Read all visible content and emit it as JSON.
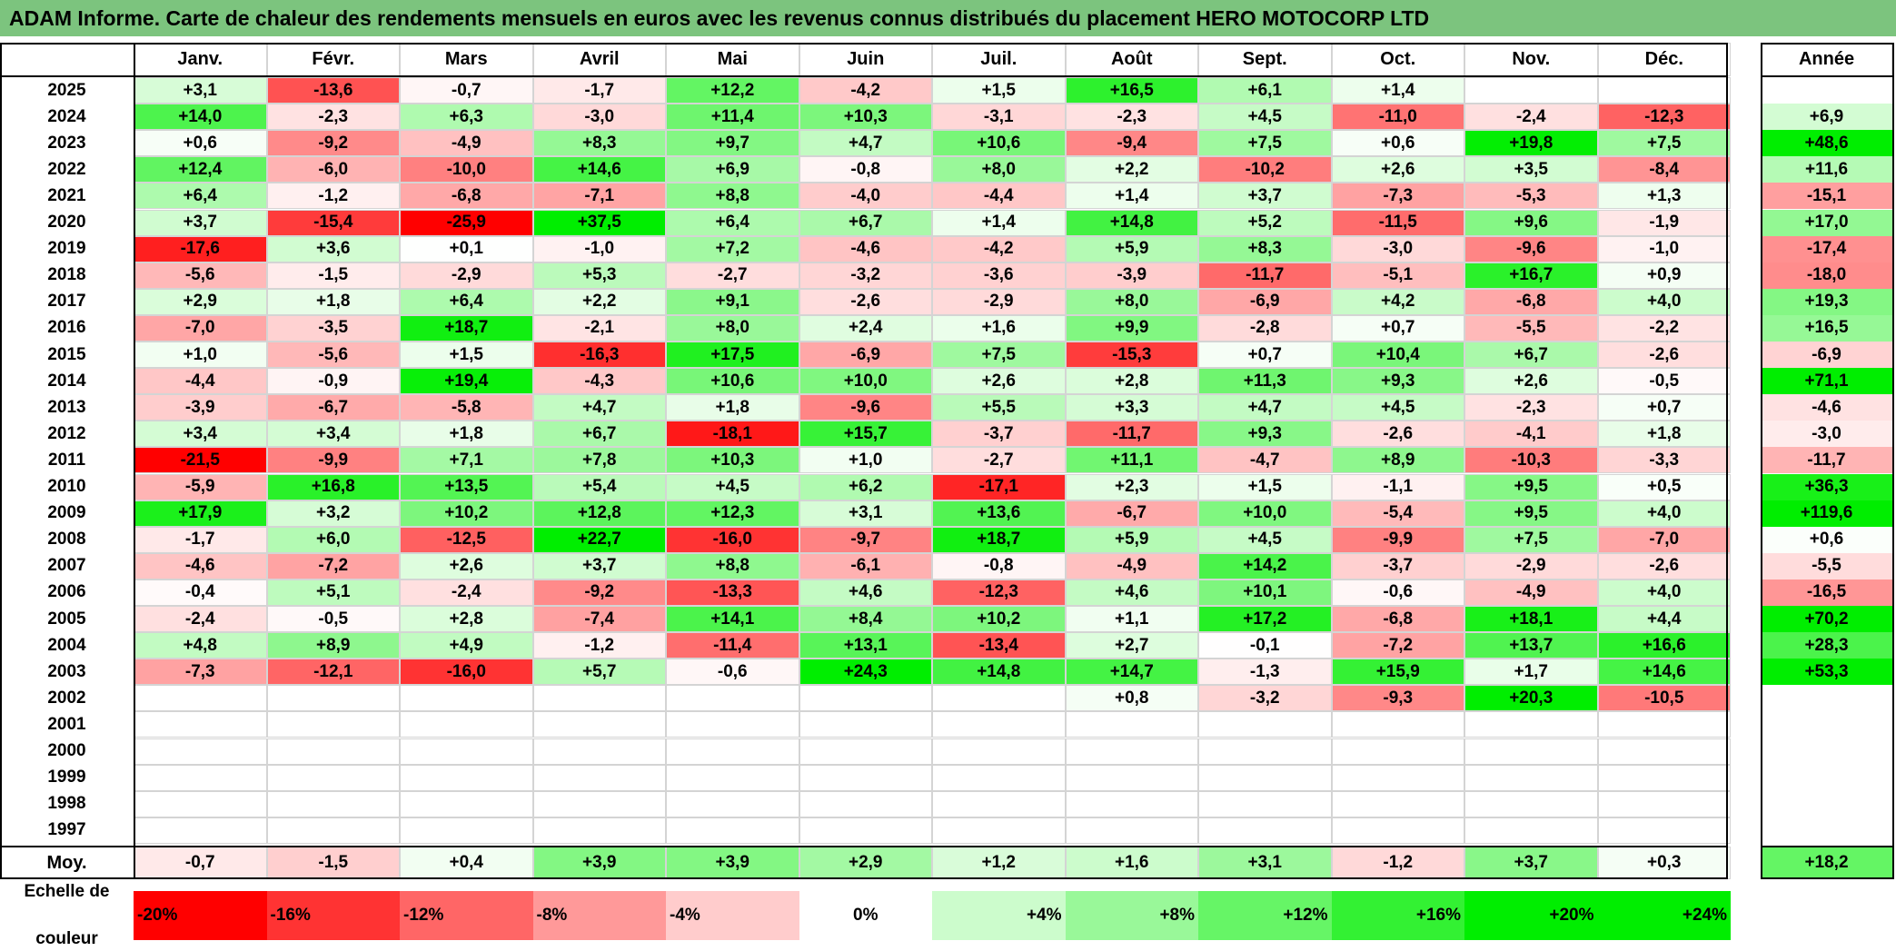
{
  "title": "ADAM Informe. Carte de chaleur des rendements mensuels en euros avec les revenus connus distribués du placement HERO MOTOCORP LTD",
  "colors": {
    "title_bg": "#7cc47e",
    "negative_max": "#ff0000",
    "positive_max": "#00ee00",
    "neutral": "#ffffff"
  },
  "chart_data": {
    "type": "heatmap",
    "title": "ADAM Informe. Carte de chaleur des rendements mensuels en euros avec les revenus connus distribués du placement HERO MOTOCORP LTD",
    "months": [
      "Janv.",
      "Févr.",
      "Mars",
      "Avril",
      "Mai",
      "Juin",
      "Juil.",
      "Août",
      "Sept.",
      "Oct.",
      "Nov.",
      "Déc."
    ],
    "year_header": "Année",
    "rows": [
      {
        "year": "2025",
        "values": [
          "+3,1",
          "-13,6",
          "-0,7",
          "-1,7",
          "+12,2",
          "-4,2",
          "+1,5",
          "+16,5",
          "+6,1",
          "+1,4",
          "",
          ""
        ],
        "annual": ""
      },
      {
        "year": "2024",
        "values": [
          "+14,0",
          "-2,3",
          "+6,3",
          "-3,0",
          "+11,4",
          "+10,3",
          "-3,1",
          "-2,3",
          "+4,5",
          "-11,0",
          "-2,4",
          "-12,3"
        ],
        "annual": "+6,9"
      },
      {
        "year": "2023",
        "values": [
          "+0,6",
          "-9,2",
          "-4,9",
          "+8,3",
          "+9,7",
          "+4,7",
          "+10,6",
          "-9,4",
          "+7,5",
          "+0,6",
          "+19,8",
          "+7,5"
        ],
        "annual": "+48,6"
      },
      {
        "year": "2022",
        "values": [
          "+12,4",
          "-6,0",
          "-10,0",
          "+14,6",
          "+6,9",
          "-0,8",
          "+8,0",
          "+2,2",
          "-10,2",
          "+2,6",
          "+3,5",
          "-8,4"
        ],
        "annual": "+11,6"
      },
      {
        "year": "2021",
        "values": [
          "+6,4",
          "-1,2",
          "-6,8",
          "-7,1",
          "+8,8",
          "-4,0",
          "-4,4",
          "+1,4",
          "+3,7",
          "-7,3",
          "-5,3",
          "+1,3"
        ],
        "annual": "-15,1"
      },
      {
        "year": "2020",
        "values": [
          "+3,7",
          "-15,4",
          "-25,9",
          "+37,5",
          "+6,4",
          "+6,7",
          "+1,4",
          "+14,8",
          "+5,2",
          "-11,5",
          "+9,6",
          "-1,9"
        ],
        "annual": "+17,0"
      },
      {
        "year": "2019",
        "values": [
          "-17,6",
          "+3,6",
          "+0,1",
          "-1,0",
          "+7,2",
          "-4,6",
          "-4,2",
          "+5,9",
          "+8,3",
          "-3,0",
          "-9,6",
          "-1,0"
        ],
        "annual": "-17,4"
      },
      {
        "year": "2018",
        "values": [
          "-5,6",
          "-1,5",
          "-2,9",
          "+5,3",
          "-2,7",
          "-3,2",
          "-3,6",
          "-3,9",
          "-11,7",
          "-5,1",
          "+16,7",
          "+0,9"
        ],
        "annual": "-18,0"
      },
      {
        "year": "2017",
        "values": [
          "+2,9",
          "+1,8",
          "+6,4",
          "+2,2",
          "+9,1",
          "-2,6",
          "-2,9",
          "+8,0",
          "-6,9",
          "+4,2",
          "-6,8",
          "+4,0"
        ],
        "annual": "+19,3"
      },
      {
        "year": "2016",
        "values": [
          "-7,0",
          "-3,5",
          "+18,7",
          "-2,1",
          "+8,0",
          "+2,4",
          "+1,6",
          "+9,9",
          "-2,8",
          "+0,7",
          "-5,5",
          "-2,2"
        ],
        "annual": "+16,5"
      },
      {
        "year": "2015",
        "values": [
          "+1,0",
          "-5,6",
          "+1,5",
          "-16,3",
          "+17,5",
          "-6,9",
          "+7,5",
          "-15,3",
          "+0,7",
          "+10,4",
          "+6,7",
          "-2,6"
        ],
        "annual": "-6,9"
      },
      {
        "year": "2014",
        "values": [
          "-4,4",
          "-0,9",
          "+19,4",
          "-4,3",
          "+10,6",
          "+10,0",
          "+2,6",
          "+2,8",
          "+11,3",
          "+9,3",
          "+2,6",
          "-0,5"
        ],
        "annual": "+71,1"
      },
      {
        "year": "2013",
        "values": [
          "-3,9",
          "-6,7",
          "-5,8",
          "+4,7",
          "+1,8",
          "-9,6",
          "+5,5",
          "+3,3",
          "+4,7",
          "+4,5",
          "-2,3",
          "+0,7"
        ],
        "annual": "-4,6"
      },
      {
        "year": "2012",
        "values": [
          "+3,4",
          "+3,4",
          "+1,8",
          "+6,7",
          "-18,1",
          "+15,7",
          "-3,7",
          "-11,7",
          "+9,3",
          "-2,6",
          "-4,1",
          "+1,8"
        ],
        "annual": "-3,0"
      },
      {
        "year": "2011",
        "values": [
          "-21,5",
          "-9,9",
          "+7,1",
          "+7,8",
          "+10,3",
          "+1,0",
          "-2,7",
          "+11,1",
          "-4,7",
          "+8,9",
          "-10,3",
          "-3,3"
        ],
        "annual": "-11,7"
      },
      {
        "year": "2010",
        "values": [
          "-5,9",
          "+16,8",
          "+13,5",
          "+5,4",
          "+4,5",
          "+6,2",
          "-17,1",
          "+2,3",
          "+1,5",
          "-1,1",
          "+9,5",
          "+0,5"
        ],
        "annual": "+36,3"
      },
      {
        "year": "2009",
        "values": [
          "+17,9",
          "+3,2",
          "+10,2",
          "+12,8",
          "+12,3",
          "+3,1",
          "+13,6",
          "-6,7",
          "+10,0",
          "-5,4",
          "+9,5",
          "+4,0"
        ],
        "annual": "+119,6"
      },
      {
        "year": "2008",
        "values": [
          "-1,7",
          "+6,0",
          "-12,5",
          "+22,7",
          "-16,0",
          "-9,7",
          "+18,7",
          "+5,9",
          "+4,5",
          "-9,9",
          "+7,5",
          "-7,0"
        ],
        "annual": "+0,6"
      },
      {
        "year": "2007",
        "values": [
          "-4,6",
          "-7,2",
          "+2,6",
          "+3,7",
          "+8,8",
          "-6,1",
          "-0,8",
          "-4,9",
          "+14,2",
          "-3,7",
          "-2,9",
          "-2,6"
        ],
        "annual": "-5,5"
      },
      {
        "year": "2006",
        "values": [
          "-0,4",
          "+5,1",
          "-2,4",
          "-9,2",
          "-13,3",
          "+4,6",
          "-12,3",
          "+4,6",
          "+10,1",
          "-0,6",
          "-4,9",
          "+4,0"
        ],
        "annual": "-16,5"
      },
      {
        "year": "2005",
        "values": [
          "-2,4",
          "-0,5",
          "+2,8",
          "-7,4",
          "+14,1",
          "+8,4",
          "+10,2",
          "+1,1",
          "+17,2",
          "-6,8",
          "+18,1",
          "+4,4"
        ],
        "annual": "+70,2"
      },
      {
        "year": "2004",
        "values": [
          "+4,8",
          "+8,9",
          "+4,9",
          "-1,2",
          "-11,4",
          "+13,1",
          "-13,4",
          "+2,7",
          "-0,1",
          "-7,2",
          "+13,7",
          "+16,6"
        ],
        "annual": "+28,3"
      },
      {
        "year": "2003",
        "values": [
          "-7,3",
          "-12,1",
          "-16,0",
          "+5,7",
          "-0,6",
          "+24,3",
          "+14,8",
          "+14,7",
          "-1,3",
          "+15,9",
          "+1,7",
          "+14,6"
        ],
        "annual": "+53,3"
      },
      {
        "year": "2002",
        "values": [
          "",
          "",
          "",
          "",
          "",
          "",
          "",
          "+0,8",
          "-3,2",
          "-9,3",
          "+20,3",
          "-10,5"
        ],
        "annual": ""
      },
      {
        "year": "2001",
        "values": [
          "",
          "",
          "",
          "",
          "",
          "",
          "",
          "",
          "",
          "",
          "",
          ""
        ],
        "annual": ""
      },
      {
        "year": "2000",
        "values": [
          "",
          "",
          "",
          "",
          "",
          "",
          "",
          "",
          "",
          "",
          "",
          ""
        ],
        "annual": ""
      },
      {
        "year": "1999",
        "values": [
          "",
          "",
          "",
          "",
          "",
          "",
          "",
          "",
          "",
          "",
          "",
          ""
        ],
        "annual": ""
      },
      {
        "year": "1998",
        "values": [
          "",
          "",
          "",
          "",
          "",
          "",
          "",
          "",
          "",
          "",
          "",
          ""
        ],
        "annual": ""
      },
      {
        "year": "1997",
        "values": [
          "",
          "",
          "",
          "",
          "",
          "",
          "",
          "",
          "",
          "",
          "",
          ""
        ],
        "annual": ""
      }
    ],
    "average": {
      "label": "Moy.",
      "values": [
        "-0,7",
        "-1,5",
        "+0,4",
        "+3,9",
        "+3,9",
        "+2,9",
        "+1,2",
        "+1,6",
        "+3,1",
        "-1,2",
        "+3,7",
        "+0,3"
      ],
      "annual": "+18,2"
    },
    "scale": {
      "label_line1": "Echelle de",
      "label_line2": "couleur",
      "stops": [
        "-20%",
        "-16%",
        "-12%",
        "-8%",
        "-4%",
        "0%",
        "+4%",
        "+8%",
        "+12%",
        "+16%",
        "+20%",
        "+24%"
      ]
    }
  }
}
